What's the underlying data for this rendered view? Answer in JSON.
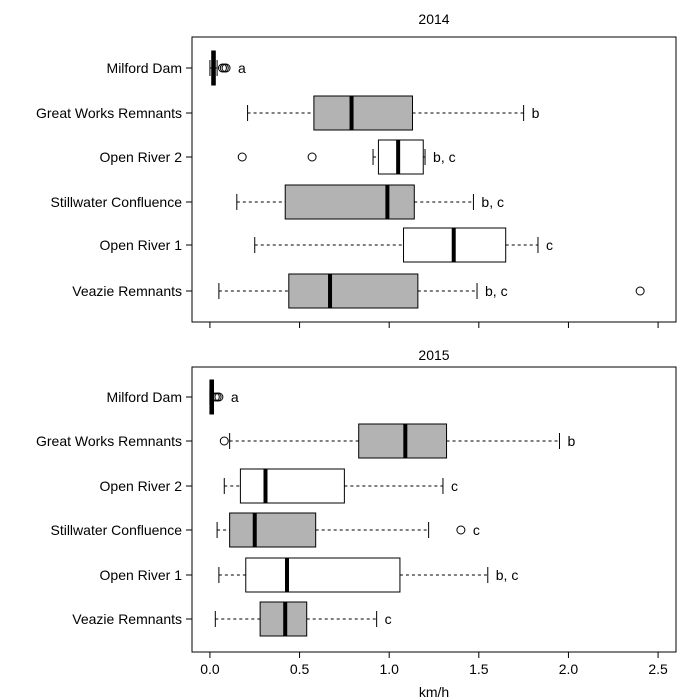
{
  "chart_data": [
    {
      "type": "boxplot",
      "orientation": "horizontal",
      "title": "2014",
      "xlim": [
        -0.1,
        2.6
      ],
      "box_colors": {
        "gray": "#b3b3b3",
        "white": "#ffffff"
      },
      "series": [
        {
          "name": "Milford Dam",
          "min": 0.0,
          "q1": 0.01,
          "median": 0.02,
          "q3": 0.03,
          "max": 0.04,
          "outliers": [
            0.07,
            0.08,
            0.09
          ],
          "group": "a",
          "fill": "#b3b3b3"
        },
        {
          "name": "Great Works Remnants",
          "min": 0.21,
          "q1": 0.58,
          "median": 0.79,
          "q3": 1.13,
          "max": 1.75,
          "outliers": [],
          "group": "b",
          "fill": "#b3b3b3"
        },
        {
          "name": "Open River 2",
          "min": 0.91,
          "q1": 0.94,
          "median": 1.05,
          "q3": 1.19,
          "max": 1.2,
          "outliers": [
            0.18,
            0.57
          ],
          "group": "b, c",
          "fill": "#ffffff"
        },
        {
          "name": "Stillwater Confluence",
          "min": 0.15,
          "q1": 0.42,
          "median": 0.99,
          "q3": 1.14,
          "max": 1.47,
          "outliers": [],
          "group": "b, c",
          "fill": "#b3b3b3"
        },
        {
          "name": "Open River 1",
          "min": 0.25,
          "q1": 1.08,
          "median": 1.36,
          "q3": 1.65,
          "max": 1.83,
          "outliers": [],
          "group": "c",
          "fill": "#ffffff"
        },
        {
          "name": "Veazie Remnants",
          "min": 0.05,
          "q1": 0.44,
          "median": 0.67,
          "q3": 1.16,
          "max": 1.49,
          "outliers": [
            2.4
          ],
          "group": "b, c",
          "fill": "#b3b3b3"
        }
      ]
    },
    {
      "type": "boxplot",
      "orientation": "horizontal",
      "title": "2015",
      "xlabel": "km/h",
      "xlim": [
        -0.1,
        2.6
      ],
      "xticks": [
        "0.0",
        "0.5",
        "1.0",
        "1.5",
        "2.0",
        "2.5"
      ],
      "box_colors": {
        "gray": "#b3b3b3",
        "white": "#ffffff"
      },
      "series": [
        {
          "name": "Milford Dam",
          "min": 0.0,
          "q1": 0.0,
          "median": 0.01,
          "q3": 0.02,
          "max": 0.02,
          "outliers": [
            0.03,
            0.04,
            0.05
          ],
          "group": "a",
          "fill": "#b3b3b3"
        },
        {
          "name": "Great Works Remnants",
          "min": 0.11,
          "q1": 0.83,
          "median": 1.09,
          "q3": 1.32,
          "max": 1.95,
          "outliers": [
            0.08
          ],
          "group": "b",
          "fill": "#b3b3b3"
        },
        {
          "name": "Open River 2",
          "min": 0.08,
          "q1": 0.17,
          "median": 0.31,
          "q3": 0.75,
          "max": 1.3,
          "outliers": [],
          "group": "c",
          "fill": "#ffffff"
        },
        {
          "name": "Stillwater Confluence",
          "min": 0.04,
          "q1": 0.11,
          "median": 0.25,
          "q3": 0.59,
          "max": 1.22,
          "outliers": [
            1.4
          ],
          "group": "c",
          "fill": "#b3b3b3"
        },
        {
          "name": "Open River 1",
          "min": 0.05,
          "q1": 0.2,
          "median": 0.43,
          "q3": 1.06,
          "max": 1.55,
          "outliers": [],
          "group": "b, c",
          "fill": "#ffffff"
        },
        {
          "name": "Veazie Remnants",
          "min": 0.03,
          "q1": 0.28,
          "median": 0.42,
          "q3": 0.54,
          "max": 0.93,
          "outliers": [],
          "group": "c",
          "fill": "#b3b3b3"
        }
      ]
    }
  ]
}
